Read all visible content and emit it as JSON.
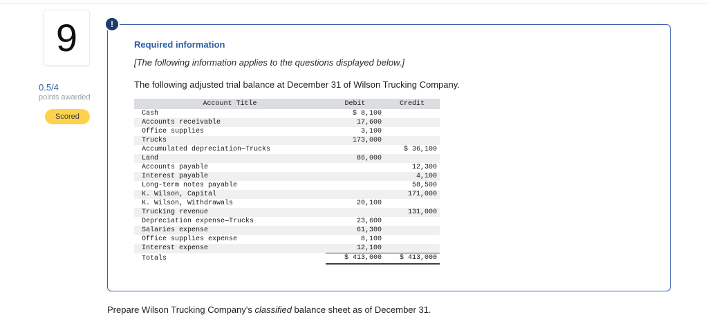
{
  "theme": {
    "accent_blue": "#2d5d9f",
    "panel_border_blue": "#3d5fa8",
    "alert_icon_navy": "#1b3e6f",
    "badge_yellow": "#ffd24d",
    "table_header_gray": "#dcdde0"
  },
  "question": {
    "number": "9",
    "points": "0.5/4",
    "points_label": "points awarded",
    "scored_label": "Scored"
  },
  "panel": {
    "alert_icon": "!",
    "heading": "Required information",
    "subheading": "[The following information applies to the questions displayed below.]",
    "intro": "The following adjusted trial balance at December 31 of Wilson Trucking Company.",
    "table": {
      "headers": [
        "Account Title",
        "Debit",
        "Credit"
      ],
      "rows": [
        {
          "account": "Cash",
          "debit": "$ 8,100",
          "credit": ""
        },
        {
          "account": "Accounts receivable",
          "debit": "17,600",
          "credit": ""
        },
        {
          "account": "Office supplies",
          "debit": "3,100",
          "credit": ""
        },
        {
          "account": "Trucks",
          "debit": "173,000",
          "credit": ""
        },
        {
          "account": "Accumulated depreciation—Trucks",
          "debit": "",
          "credit": "$ 36,100"
        },
        {
          "account": "Land",
          "debit": "86,000",
          "credit": ""
        },
        {
          "account": "Accounts payable",
          "debit": "",
          "credit": "12,300"
        },
        {
          "account": "Interest payable",
          "debit": "",
          "credit": "4,100"
        },
        {
          "account": "Long-term notes payable",
          "debit": "",
          "credit": "58,500"
        },
        {
          "account": "K. Wilson, Capital",
          "debit": "",
          "credit": "171,000"
        },
        {
          "account": "K. Wilson, Withdrawals",
          "debit": "20,100",
          "credit": ""
        },
        {
          "account": "Trucking revenue",
          "debit": "",
          "credit": "131,000"
        },
        {
          "account": "Depreciation expense—Trucks",
          "debit": "23,600",
          "credit": ""
        },
        {
          "account": "Salaries expense",
          "debit": "61,300",
          "credit": ""
        },
        {
          "account": "Office supplies expense",
          "debit": "8,100",
          "credit": ""
        },
        {
          "account": "Interest expense",
          "debit": "12,100",
          "credit": ""
        }
      ],
      "totals": {
        "label": "Totals",
        "debit": "$ 413,000",
        "credit": "$ 413,000"
      }
    }
  },
  "footer": {
    "part1": "Prepare Wilson Trucking Company's ",
    "italic": "classified",
    "part2": " balance sheet as of December 31."
  }
}
